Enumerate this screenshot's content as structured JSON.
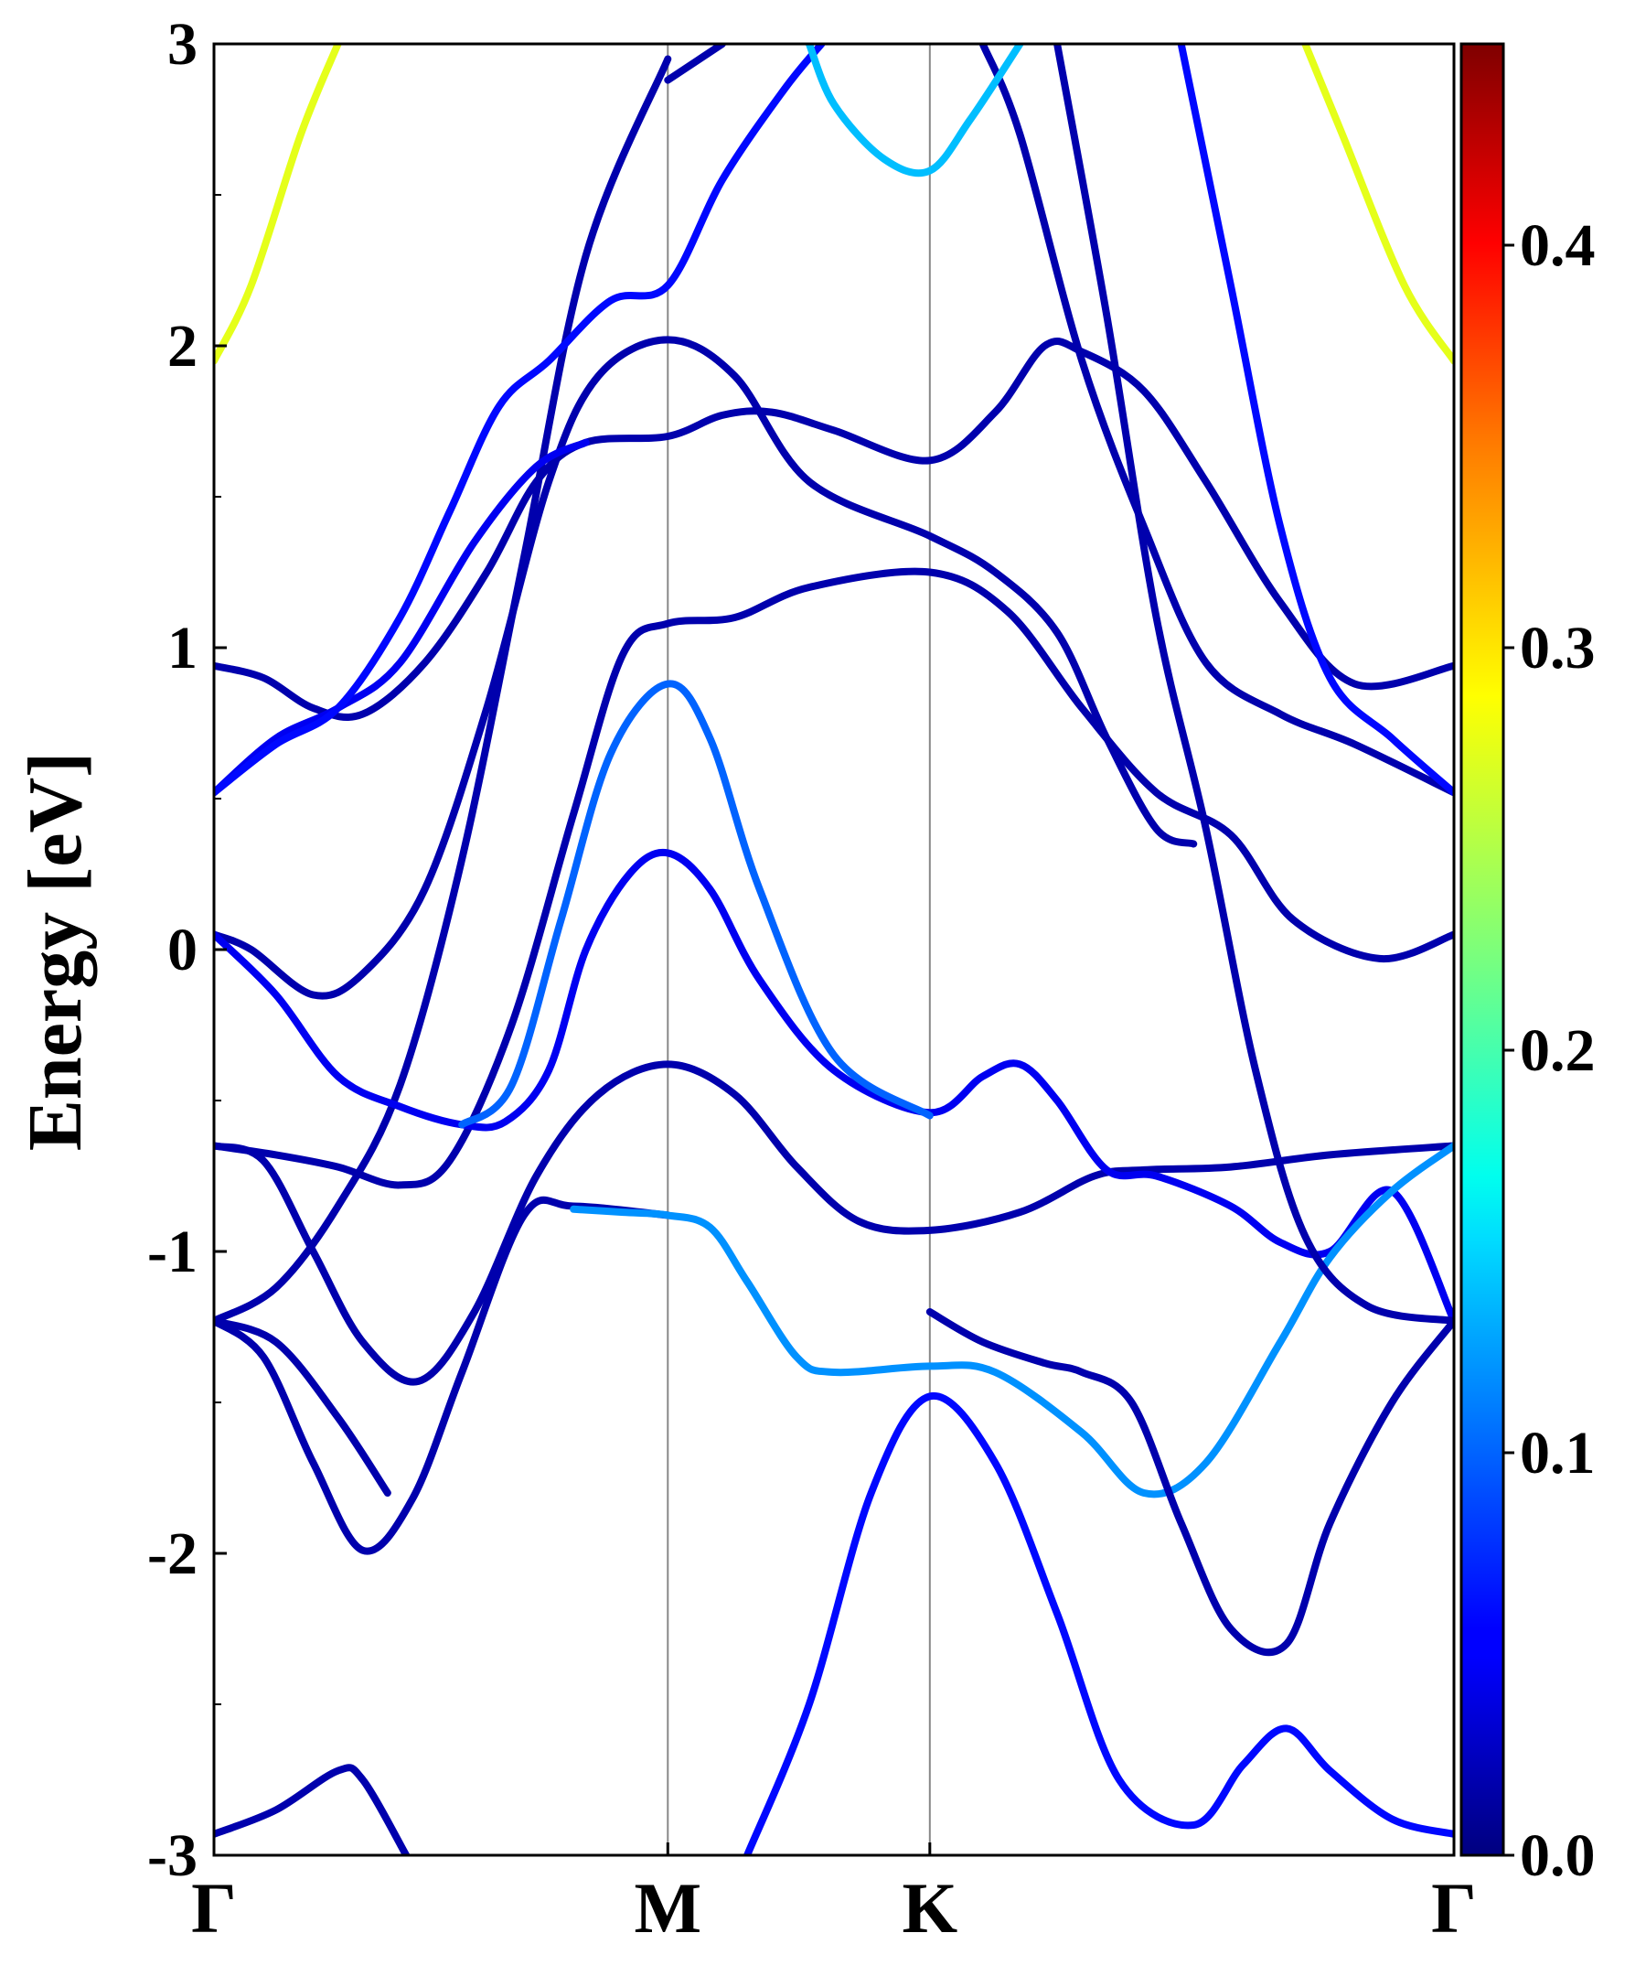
{
  "chart_data": {
    "type": "line",
    "title": "",
    "ylabel": "Energy [eV]",
    "xlabel": "",
    "ylim": [
      -3,
      3
    ],
    "yticks": [
      -3,
      -2,
      -1,
      0,
      1,
      2,
      3
    ],
    "ytick_labels": [
      "-3",
      "-2",
      "-1",
      "0",
      "1",
      "2",
      "3"
    ],
    "k_path": [
      {
        "label": "Γ",
        "x": 0.0
      },
      {
        "label": "M",
        "x": 0.366
      },
      {
        "label": "K",
        "x": 0.5773
      },
      {
        "label": "Γ",
        "x": 1.0
      }
    ],
    "colorbar": {
      "colormap": "jet",
      "range": [
        0.0,
        0.45
      ],
      "ticks": [
        0.0,
        0.1,
        0.2,
        0.3,
        0.4
      ],
      "tick_labels": [
        "0.0",
        "0.1",
        "0.2",
        "0.3",
        "0.4"
      ]
    },
    "bands": [
      {
        "weight": 0.02,
        "points": [
          [
            0.0,
            -2.93
          ],
          [
            0.05,
            -2.85
          ],
          [
            0.1,
            -2.72
          ],
          [
            0.12,
            -2.75
          ],
          [
            0.155,
            -3.0
          ]
        ]
      },
      {
        "weight": 0.02,
        "points": [
          [
            0.0,
            -1.23
          ],
          [
            0.04,
            -1.35
          ],
          [
            0.08,
            -1.7
          ],
          [
            0.12,
            -1.99
          ],
          [
            0.16,
            -1.82
          ],
          [
            0.2,
            -1.4
          ],
          [
            0.25,
            -0.88
          ],
          [
            0.29,
            -0.85
          ],
          [
            0.366,
            -0.88
          ]
        ]
      },
      {
        "weight": 0.02,
        "points": [
          [
            0.0,
            -1.23
          ],
          [
            0.05,
            -1.12
          ],
          [
            0.1,
            -0.85
          ],
          [
            0.15,
            -0.45
          ],
          [
            0.2,
            0.3
          ],
          [
            0.25,
            1.3
          ],
          [
            0.3,
            2.3
          ],
          [
            0.366,
            2.95
          ]
        ]
      },
      {
        "weight": 0.02,
        "points": [
          [
            0.0,
            -0.65
          ],
          [
            0.04,
            -0.7
          ],
          [
            0.08,
            -1.0
          ],
          [
            0.12,
            -1.3
          ],
          [
            0.165,
            -1.43
          ],
          [
            0.21,
            -1.2
          ],
          [
            0.26,
            -0.75
          ],
          [
            0.31,
            -0.48
          ],
          [
            0.366,
            -0.38
          ],
          [
            0.42,
            -0.48
          ],
          [
            0.47,
            -0.72
          ],
          [
            0.52,
            -0.9
          ],
          [
            0.5773,
            -0.93
          ],
          [
            0.65,
            -0.87
          ],
          [
            0.71,
            -0.75
          ],
          [
            0.75,
            -0.73
          ],
          [
            0.82,
            -0.72
          ],
          [
            0.9,
            -0.68
          ],
          [
            1.0,
            -0.65
          ]
        ]
      },
      {
        "weight": 0.02,
        "points": [
          [
            0.0,
            -0.65
          ],
          [
            0.05,
            -0.68
          ],
          [
            0.1,
            -0.72
          ],
          [
            0.15,
            -0.78
          ],
          [
            0.19,
            -0.7
          ],
          [
            0.24,
            -0.25
          ],
          [
            0.29,
            0.45
          ],
          [
            0.33,
            0.98
          ],
          [
            0.366,
            1.08
          ],
          [
            0.42,
            1.1
          ],
          [
            0.48,
            1.2
          ],
          [
            0.5773,
            1.25
          ],
          [
            0.64,
            1.12
          ],
          [
            0.7,
            0.8
          ],
          [
            0.76,
            0.52
          ],
          [
            0.82,
            0.38
          ],
          [
            0.87,
            0.1
          ],
          [
            0.94,
            -0.03
          ],
          [
            1.0,
            0.05
          ]
        ]
      },
      {
        "weight": 0.02,
        "points": [
          [
            0.0,
            0.05
          ],
          [
            0.03,
            0.0
          ],
          [
            0.08,
            -0.15
          ],
          [
            0.12,
            -0.08
          ],
          [
            0.17,
            0.2
          ],
          [
            0.22,
            0.8
          ],
          [
            0.27,
            1.55
          ],
          [
            0.31,
            1.9
          ],
          [
            0.366,
            2.02
          ],
          [
            0.42,
            1.9
          ],
          [
            0.48,
            1.55
          ],
          [
            0.5773,
            1.37
          ],
          [
            0.63,
            1.25
          ],
          [
            0.68,
            1.05
          ],
          [
            0.72,
            0.7
          ],
          [
            0.76,
            0.4
          ],
          [
            0.79,
            0.35
          ]
        ]
      },
      {
        "weight": 0.02,
        "points": [
          [
            0.0,
            0.94
          ],
          [
            0.04,
            0.9
          ],
          [
            0.08,
            0.8
          ],
          [
            0.12,
            0.78
          ],
          [
            0.17,
            0.95
          ],
          [
            0.22,
            1.25
          ],
          [
            0.26,
            1.55
          ],
          [
            0.3,
            1.68
          ],
          [
            0.366,
            1.7
          ],
          [
            0.41,
            1.77
          ],
          [
            0.45,
            1.78
          ],
          [
            0.5,
            1.72
          ],
          [
            0.5773,
            1.62
          ],
          [
            0.63,
            1.78
          ],
          [
            0.67,
            2.0
          ],
          [
            0.7,
            1.98
          ],
          [
            0.75,
            1.85
          ],
          [
            0.8,
            1.55
          ],
          [
            0.86,
            1.15
          ],
          [
            0.92,
            0.88
          ],
          [
            1.0,
            0.94
          ]
        ]
      },
      {
        "weight": 0.05,
        "points": [
          [
            0.0,
            0.52
          ],
          [
            0.05,
            0.7
          ],
          [
            0.1,
            0.8
          ],
          [
            0.15,
            0.95
          ],
          [
            0.21,
            1.35
          ],
          [
            0.26,
            1.6
          ],
          [
            0.3,
            1.68
          ]
        ]
      },
      {
        "weight": 0.05,
        "points": [
          [
            0.0,
            0.05
          ],
          [
            0.05,
            -0.15
          ],
          [
            0.1,
            -0.42
          ],
          [
            0.15,
            -0.52
          ],
          [
            0.2,
            -0.58
          ],
          [
            0.235,
            -0.57
          ],
          [
            0.27,
            -0.4
          ],
          [
            0.3,
            0.0
          ],
          [
            0.335,
            0.25
          ],
          [
            0.366,
            0.32
          ],
          [
            0.4,
            0.2
          ],
          [
            0.44,
            -0.1
          ],
          [
            0.5,
            -0.4
          ],
          [
            0.5773,
            -0.54
          ],
          [
            0.62,
            -0.42
          ],
          [
            0.65,
            -0.38
          ],
          [
            0.68,
            -0.5
          ],
          [
            0.72,
            -0.73
          ],
          [
            0.76,
            -0.75
          ],
          [
            0.82,
            -0.85
          ],
          [
            0.86,
            -0.97
          ],
          [
            0.9,
            -1.0
          ],
          [
            0.95,
            -0.8
          ],
          [
            1.0,
            -1.23
          ]
        ]
      },
      {
        "weight": 0.06,
        "points": [
          [
            0.0,
            0.52
          ],
          [
            0.05,
            0.68
          ],
          [
            0.1,
            0.8
          ],
          [
            0.15,
            1.1
          ],
          [
            0.19,
            1.45
          ],
          [
            0.23,
            1.8
          ],
          [
            0.27,
            1.95
          ],
          [
            0.32,
            2.15
          ],
          [
            0.366,
            2.2
          ],
          [
            0.41,
            2.55
          ],
          [
            0.46,
            2.85
          ],
          [
            0.49,
            3.0
          ]
        ]
      },
      {
        "weight": 0.12,
        "points": [
          [
            0.29,
            -0.86
          ],
          [
            0.33,
            -0.87
          ],
          [
            0.366,
            -0.88
          ],
          [
            0.4,
            -0.92
          ],
          [
            0.43,
            -1.1
          ],
          [
            0.47,
            -1.35
          ],
          [
            0.5,
            -1.4
          ],
          [
            0.5773,
            -1.38
          ],
          [
            0.63,
            -1.4
          ],
          [
            0.7,
            -1.6
          ],
          [
            0.75,
            -1.8
          ],
          [
            0.8,
            -1.7
          ],
          [
            0.86,
            -1.3
          ],
          [
            0.9,
            -1.02
          ],
          [
            0.95,
            -0.8
          ],
          [
            1.0,
            -0.65
          ]
        ]
      },
      {
        "weight": 0.1,
        "points": [
          [
            0.2,
            -0.58
          ],
          [
            0.24,
            -0.45
          ],
          [
            0.28,
            0.1
          ],
          [
            0.32,
            0.65
          ],
          [
            0.366,
            0.88
          ],
          [
            0.4,
            0.7
          ],
          [
            0.44,
            0.2
          ],
          [
            0.5,
            -0.35
          ],
          [
            0.5773,
            -0.55
          ]
        ]
      },
      {
        "weight": 0.02,
        "points": [
          [
            0.0,
            -1.23
          ],
          [
            0.05,
            -1.3
          ],
          [
            0.1,
            -1.55
          ],
          [
            0.14,
            -1.8
          ]
        ]
      },
      {
        "weight": 0.06,
        "points": [
          [
            0.43,
            -3.0
          ],
          [
            0.48,
            -2.5
          ],
          [
            0.53,
            -1.8
          ],
          [
            0.5773,
            -1.48
          ],
          [
            0.63,
            -1.7
          ],
          [
            0.68,
            -2.2
          ],
          [
            0.73,
            -2.75
          ],
          [
            0.79,
            -2.9
          ],
          [
            0.83,
            -2.7
          ],
          [
            0.865,
            -2.58
          ],
          [
            0.9,
            -2.72
          ],
          [
            0.95,
            -2.88
          ],
          [
            1.0,
            -2.93
          ]
        ]
      },
      {
        "weight": 0.02,
        "points": [
          [
            0.5773,
            -1.2
          ],
          [
            0.62,
            -1.3
          ],
          [
            0.67,
            -1.37
          ],
          [
            0.7,
            -1.4
          ],
          [
            0.74,
            -1.5
          ],
          [
            0.78,
            -1.9
          ],
          [
            0.82,
            -2.25
          ],
          [
            0.865,
            -2.3
          ],
          [
            0.9,
            -1.9
          ],
          [
            0.95,
            -1.5
          ],
          [
            1.0,
            -1.23
          ]
        ]
      },
      {
        "weight": 0.02,
        "points": [
          [
            0.366,
            2.88
          ],
          [
            0.41,
            3.0
          ]
        ]
      },
      {
        "weight": 0.02,
        "points": [
          [
            0.68,
            3.0
          ],
          [
            0.72,
            2.1
          ],
          [
            0.76,
            1.1
          ],
          [
            0.8,
            0.4
          ],
          [
            0.84,
            -0.4
          ],
          [
            0.88,
            -0.95
          ],
          [
            0.93,
            -1.18
          ],
          [
            1.0,
            -1.23
          ]
        ]
      },
      {
        "weight": 0.02,
        "points": [
          [
            0.62,
            3.0
          ],
          [
            0.65,
            2.7
          ],
          [
            0.7,
            1.95
          ],
          [
            0.75,
            1.4
          ],
          [
            0.8,
            0.95
          ],
          [
            0.86,
            0.78
          ],
          [
            0.92,
            0.68
          ],
          [
            1.0,
            0.52
          ]
        ]
      },
      {
        "weight": 0.06,
        "points": [
          [
            0.78,
            3.0
          ],
          [
            0.82,
            2.2
          ],
          [
            0.86,
            1.4
          ],
          [
            0.9,
            0.9
          ],
          [
            0.95,
            0.7
          ],
          [
            1.0,
            0.52
          ]
        ]
      },
      {
        "weight": 0.14,
        "points": [
          [
            0.48,
            3.0
          ],
          [
            0.5,
            2.8
          ],
          [
            0.54,
            2.62
          ],
          [
            0.5773,
            2.58
          ],
          [
            0.61,
            2.75
          ],
          [
            0.65,
            3.0
          ]
        ]
      },
      {
        "weight": 0.27,
        "points": [
          [
            0.0,
            1.95
          ],
          [
            0.03,
            2.2
          ],
          [
            0.07,
            2.7
          ],
          [
            0.1,
            3.0
          ]
        ]
      },
      {
        "weight": 0.27,
        "points": [
          [
            0.88,
            3.0
          ],
          [
            0.91,
            2.7
          ],
          [
            0.96,
            2.2
          ],
          [
            1.0,
            1.95
          ]
        ]
      }
    ]
  }
}
